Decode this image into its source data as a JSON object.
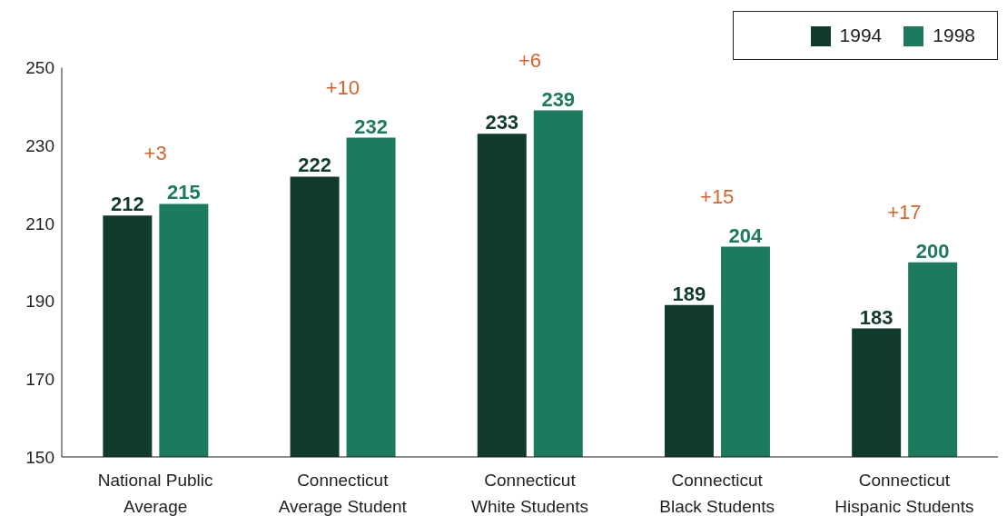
{
  "chart_data": {
    "type": "bar",
    "categories": [
      "National Public\nAverage",
      "Connecticut\nAverage Student",
      "Connecticut\nWhite Students",
      "Connecticut\nBlack Students",
      "Connecticut\nHispanic Students"
    ],
    "series": [
      {
        "name": "1994",
        "color": "#113b2e",
        "values": [
          212,
          222,
          233,
          189,
          183
        ]
      },
      {
        "name": "1998",
        "color": "#1c7a5e",
        "values": [
          215,
          232,
          239,
          204,
          200
        ]
      }
    ],
    "ylim": [
      150,
      250
    ],
    "yticks": [
      150,
      170,
      190,
      210,
      230,
      250
    ],
    "grid": false,
    "legend": "top right",
    "data_labels": true,
    "annotations": [
      {
        "text": "+3",
        "x": "National Public\nAverage",
        "y": 215
      },
      {
        "text": "+10",
        "x": "Connecticut\nAverage Student",
        "y": 232
      },
      {
        "text": "+6",
        "x": "Connecticut\nWhite Students",
        "y": 239
      },
      {
        "text": "+15",
        "x": "Connecticut\nBlack Students",
        "y": 204
      },
      {
        "text": "+17",
        "x": "Connecticut\nHispanic Students",
        "y": 200
      }
    ]
  }
}
